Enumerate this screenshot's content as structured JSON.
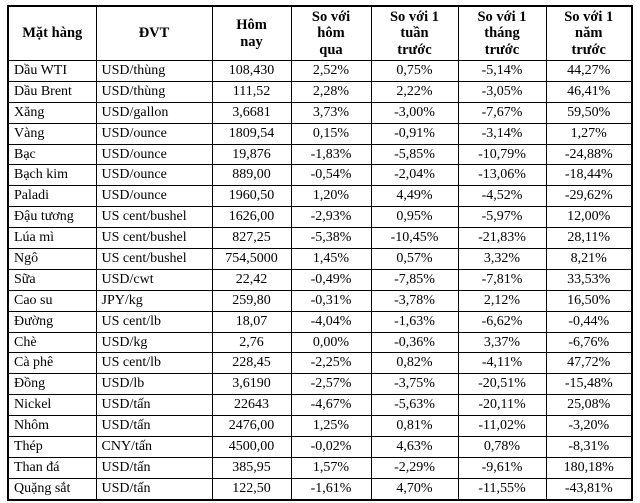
{
  "table": {
    "headers": [
      "Mặt hàng",
      "ĐVT",
      "Hôm\nnay",
      "So với\nhôm\nqua",
      "So với 1\ntuần\ntrước",
      "So với 1\ntháng\ntrước",
      "So với 1\nnăm\ntrước"
    ]
  },
  "chart_data": {
    "type": "table",
    "title": "",
    "columns": [
      "Mặt hàng",
      "ĐVT",
      "Hôm nay",
      "So với hôm qua",
      "So với 1 tuần trước",
      "So với 1 tháng trước",
      "So với 1 năm trước"
    ],
    "rows": [
      [
        "Dầu WTI",
        "USD/thùng",
        "108,430",
        "2,52%",
        "0,75%",
        "-5,14%",
        "44,27%"
      ],
      [
        "Dầu Brent",
        "USD/thùng",
        "111,52",
        "2,28%",
        "2,22%",
        "-3,05%",
        "46,41%"
      ],
      [
        "Xăng",
        "USD/gallon",
        "3,6681",
        "3,73%",
        "-3,00%",
        "-7,67%",
        "59,50%"
      ],
      [
        "Vàng",
        "USD/ounce",
        "1809,54",
        "0,15%",
        "-0,91%",
        "-3,14%",
        "1,27%"
      ],
      [
        "Bạc",
        "USD/ounce",
        "19,876",
        "-1,83%",
        "-5,85%",
        "-10,79%",
        "-24,88%"
      ],
      [
        "Bạch kim",
        "USD/ounce",
        "889,00",
        "-0,54%",
        "-2,04%",
        "-13,06%",
        "-18,44%"
      ],
      [
        "Paladi",
        "USD/ounce",
        "1960,50",
        "1,20%",
        "4,49%",
        "-4,52%",
        "-29,62%"
      ],
      [
        "Đậu tương",
        "US cent/bushel",
        "1626,00",
        "-2,93%",
        "0,95%",
        "-5,97%",
        "12,00%"
      ],
      [
        "Lúa mì",
        "US cent/bushel",
        "827,25",
        "-5,38%",
        "-10,45%",
        "-21,83%",
        "28,11%"
      ],
      [
        "Ngô",
        "US cent/bushel",
        "754,5000",
        "1,45%",
        "0,57%",
        "3,32%",
        "8,21%"
      ],
      [
        "Sữa",
        "USD/cwt",
        "22,42",
        "-0,49%",
        "-7,85%",
        "-7,81%",
        "33,53%"
      ],
      [
        "Cao su",
        "JPY/kg",
        "259,80",
        "-0,31%",
        "-3,78%",
        "2,12%",
        "16,50%"
      ],
      [
        "Đường",
        "US cent/lb",
        "18,07",
        "-4,04%",
        "-1,63%",
        "-6,62%",
        "-0,44%"
      ],
      [
        "Chè",
        "USD/kg",
        "2,76",
        "0,00%",
        "-0,36%",
        "3,37%",
        "-6,76%"
      ],
      [
        "Cà phê",
        "US cent/lb",
        "228,45",
        "-2,25%",
        "0,82%",
        "-4,11%",
        "47,72%"
      ],
      [
        "Đồng",
        "USD/lb",
        "3,6190",
        "-2,57%",
        "-3,75%",
        "-20,51%",
        "-15,48%"
      ],
      [
        "Nickel",
        "USD/tấn",
        "22643",
        "-4,67%",
        "-5,63%",
        "-20,11%",
        "25,08%"
      ],
      [
        "Nhôm",
        "USD/tấn",
        "2476,00",
        "1,25%",
        "0,81%",
        "-11,02%",
        "-3,20%"
      ],
      [
        "Thép",
        "CNY/tấn",
        "4500,00",
        "-0,02%",
        "4,63%",
        "0,78%",
        "-8,31%"
      ],
      [
        "Than đá",
        "USD/tấn",
        "385,95",
        "1,57%",
        "-2,29%",
        "-9,61%",
        "180,18%"
      ],
      [
        "Quặng sắt",
        "USD/tấn",
        "122,50",
        "-1,61%",
        "4,70%",
        "-11,55%",
        "-43,81%"
      ]
    ]
  }
}
